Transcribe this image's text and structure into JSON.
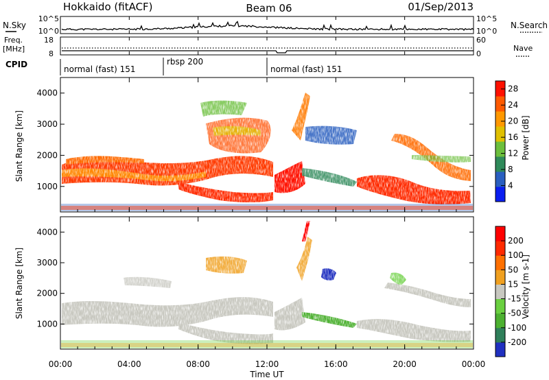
{
  "header": {
    "title": "Hokkaido (fitACF)",
    "beam": "Beam 06",
    "date": "01/Sep/2013"
  },
  "top_panel": {
    "nsky_label": "N.Sky",
    "nsearch_label": "N.Search",
    "scale_high": "10^5",
    "scale_low": "10^0",
    "freq_label_1": "Freq.",
    "freq_label_2": "[MHz]",
    "freq_ticks": [
      "18",
      "8"
    ],
    "nave_label": "Nave",
    "nave_ticks": [
      "60",
      "0"
    ],
    "cpid_label": "CPID",
    "cpid_segments": [
      {
        "label": "normal (fast) 151",
        "start_hour": 0,
        "end_hour": 6
      },
      {
        "label": "rbsp 200",
        "start_hour": 6,
        "end_hour": 12
      },
      {
        "label": "normal (fast) 151",
        "start_hour": 12,
        "end_hour": 24
      }
    ]
  },
  "chart_data": [
    {
      "type": "heatmap",
      "name": "power",
      "ylabel": "Slant Range [km]",
      "xlabel": "",
      "xlim": [
        0,
        24
      ],
      "ylim": [
        180,
        4500
      ],
      "yticks": [
        "1000",
        "2000",
        "3000",
        "4000"
      ],
      "colorbar_label": "Power [dB]",
      "colorbar_ticks": [
        "4",
        "8",
        "12",
        "16",
        "20",
        "24",
        "28"
      ],
      "colorbar_range": [
        0,
        30
      ],
      "colorbar_colors": [
        "#0a1ef0",
        "#2a5fc0",
        "#2f8a5a",
        "#6cbf3c",
        "#e0c000",
        "#ff9800",
        "#ff5a00",
        "#ff1000"
      ]
    },
    {
      "type": "heatmap",
      "name": "velocity",
      "ylabel": "Slant Range [km]",
      "xlabel": "Time UT",
      "xlim": [
        0,
        24
      ],
      "ylim": [
        180,
        4500
      ],
      "xticks": [
        "00:00",
        "04:00",
        "08:00",
        "12:00",
        "16:00",
        "20:00",
        "00:00"
      ],
      "yticks": [
        "1000",
        "2000",
        "3000",
        "4000"
      ],
      "colorbar_label": "Velocity [m s-1]",
      "colorbar_ticks": [
        "200",
        "100",
        "50",
        "15",
        "-15",
        "-50",
        "-100",
        "-200"
      ],
      "colorbar_colors": [
        "#2030c0",
        "#2f7f5a",
        "#4cb030",
        "#6ad040",
        "#c8c8c0",
        "#f0a020",
        "#ff7000",
        "#ff2a00",
        "#ff0000"
      ]
    }
  ]
}
